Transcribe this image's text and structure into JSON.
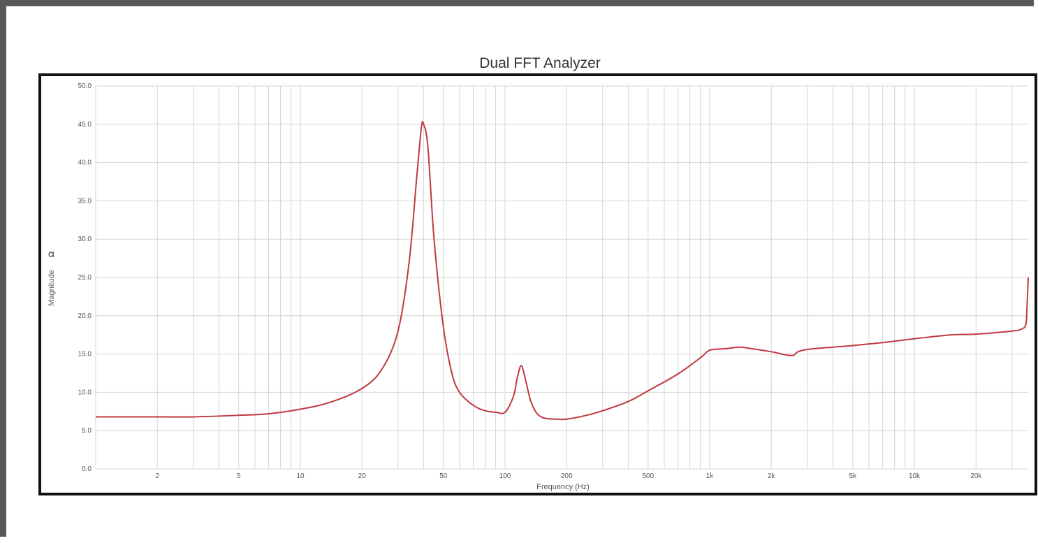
{
  "chart_data": {
    "type": "line",
    "title": "Dual FFT Analyzer",
    "xlabel": "Frequency (Hz)",
    "ylabel": "Magnitude",
    "yunit": "Ω",
    "xscale": "log",
    "xlim": [
      1,
      36000
    ],
    "ylim": [
      0,
      50
    ],
    "grid": true,
    "line_color": "#c0393f",
    "yticks": [
      "0.0",
      "5.0",
      "10.0",
      "15.0",
      "20.0",
      "25.0",
      "30.0",
      "35.0",
      "40.0",
      "45.0",
      "50.0"
    ],
    "xtick_labels": [
      {
        "value": 2,
        "label": "2"
      },
      {
        "value": 5,
        "label": "5"
      },
      {
        "value": 10,
        "label": "10"
      },
      {
        "value": 20,
        "label": "20"
      },
      {
        "value": 50,
        "label": "50"
      },
      {
        "value": 100,
        "label": "100"
      },
      {
        "value": 200,
        "label": "200"
      },
      {
        "value": 500,
        "label": "500"
      },
      {
        "value": 1000,
        "label": "1k"
      },
      {
        "value": 2000,
        "label": "2k"
      },
      {
        "value": 5000,
        "label": "5k"
      },
      {
        "value": 10000,
        "label": "10k"
      },
      {
        "value": 20000,
        "label": "20k"
      }
    ],
    "series": [
      {
        "points": [
          [
            1,
            6.8
          ],
          [
            2,
            6.8
          ],
          [
            3,
            6.8
          ],
          [
            5,
            7.0
          ],
          [
            7,
            7.2
          ],
          [
            10,
            7.8
          ],
          [
            14,
            8.7
          ],
          [
            20,
            10.5
          ],
          [
            25,
            13.0
          ],
          [
            30,
            18.0
          ],
          [
            34,
            27.0
          ],
          [
            37,
            38.0
          ],
          [
            39,
            44.5
          ],
          [
            40,
            45.0
          ],
          [
            42,
            42.0
          ],
          [
            45,
            30.0
          ],
          [
            50,
            18.5
          ],
          [
            55,
            12.5
          ],
          [
            60,
            10.0
          ],
          [
            70,
            8.3
          ],
          [
            80,
            7.6
          ],
          [
            90,
            7.4
          ],
          [
            100,
            7.4
          ],
          [
            110,
            9.5
          ],
          [
            115,
            12.0
          ],
          [
            120,
            13.5
          ],
          [
            125,
            12.0
          ],
          [
            135,
            8.5
          ],
          [
            150,
            6.8
          ],
          [
            180,
            6.5
          ],
          [
            200,
            6.5
          ],
          [
            250,
            7.0
          ],
          [
            300,
            7.6
          ],
          [
            400,
            8.8
          ],
          [
            500,
            10.2
          ],
          [
            700,
            12.4
          ],
          [
            900,
            14.5
          ],
          [
            1000,
            15.5
          ],
          [
            1200,
            15.7
          ],
          [
            1400,
            15.9
          ],
          [
            1600,
            15.7
          ],
          [
            2000,
            15.3
          ],
          [
            2500,
            14.8
          ],
          [
            2700,
            15.3
          ],
          [
            3000,
            15.6
          ],
          [
            4000,
            15.9
          ],
          [
            5000,
            16.1
          ],
          [
            7000,
            16.5
          ],
          [
            10000,
            17.0
          ],
          [
            15000,
            17.5
          ],
          [
            20000,
            17.6
          ],
          [
            30000,
            18.0
          ],
          [
            33000,
            18.2
          ],
          [
            35000,
            18.8
          ],
          [
            35500,
            21.0
          ],
          [
            36000,
            25.0
          ]
        ]
      }
    ]
  }
}
